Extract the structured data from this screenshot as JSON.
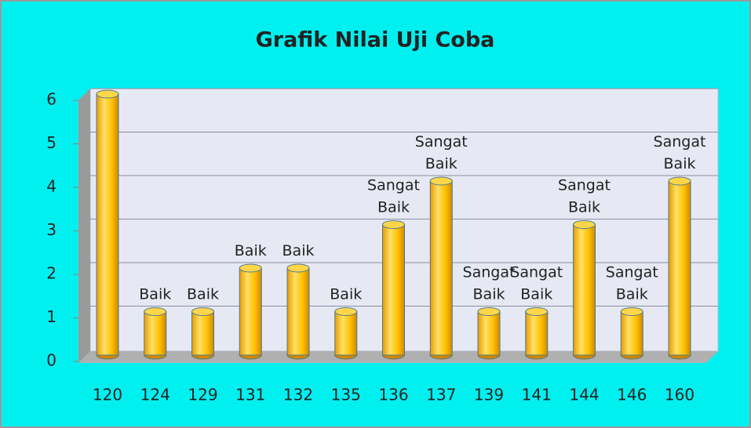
{
  "chart_data": {
    "type": "bar",
    "title": "Grafik Nilai Uji Coba",
    "categories": [
      "120",
      "124",
      "129",
      "131",
      "132",
      "135",
      "136",
      "137",
      "139",
      "141",
      "144",
      "146",
      "160"
    ],
    "values": [
      6,
      1,
      1,
      2,
      2,
      1,
      3,
      4,
      1,
      1,
      3,
      1,
      4
    ],
    "labels": [
      null,
      "Baik",
      "Baik",
      "Baik",
      "Baik",
      "Baik",
      "Sangat Baik",
      "Sangat Baik",
      "Sangat Baik",
      "Sangat Baik",
      "Sangat Baik",
      "Sangat Baik",
      "Sangat Baik"
    ],
    "color": "#ffc000",
    "ylim": [
      0,
      6
    ],
    "yticks": [
      0,
      1,
      2,
      3,
      4,
      5,
      6
    ],
    "grid": true
  }
}
